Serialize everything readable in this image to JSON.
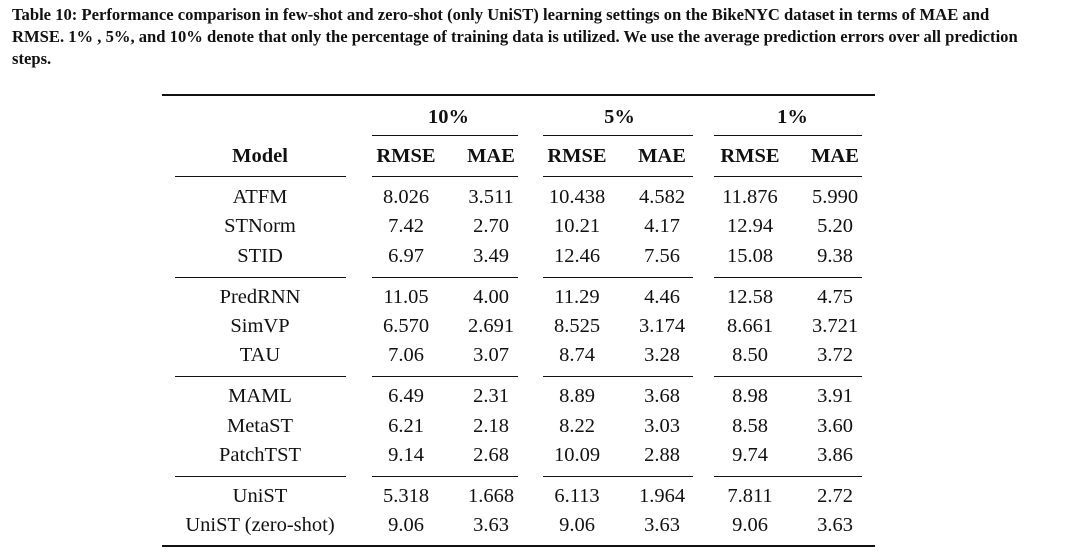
{
  "caption": "Table 10: Performance comparison in few-shot and zero-shot (only UniST) learning settings on the BikeNYC dataset in terms of MAE and RMSE. 1% , 5%, and 10% denote that only the percentage of training data is utilized. We use the average prediction errors over all prediction steps.",
  "table": {
    "groups": [
      "10%",
      "5%",
      "1%"
    ],
    "columns": [
      "Model",
      "RMSE",
      "MAE",
      "RMSE",
      "MAE",
      "RMSE",
      "MAE"
    ],
    "sections": [
      [
        [
          "ATFM",
          "8.026",
          "3.511",
          "10.438",
          "4.582",
          "11.876",
          "5.990"
        ],
        [
          "STNorm",
          "7.42",
          "2.70",
          "10.21",
          "4.17",
          "12.94",
          "5.20"
        ],
        [
          "STID",
          "6.97",
          "3.49",
          "12.46",
          "7.56",
          "15.08",
          "9.38"
        ]
      ],
      [
        [
          "PredRNN",
          "11.05",
          "4.00",
          "11.29",
          "4.46",
          "12.58",
          "4.75"
        ],
        [
          "SimVP",
          "6.570",
          "2.691",
          "8.525",
          "3.174",
          "8.661",
          "3.721"
        ],
        [
          "TAU",
          "7.06",
          "3.07",
          "8.74",
          "3.28",
          "8.50",
          "3.72"
        ]
      ],
      [
        [
          "MAML",
          "6.49",
          "2.31",
          "8.89",
          "3.68",
          "8.98",
          "3.91"
        ],
        [
          "MetaST",
          "6.21",
          "2.18",
          "8.22",
          "3.03",
          "8.58",
          "3.60"
        ],
        [
          "PatchTST",
          "9.14",
          "2.68",
          "10.09",
          "2.88",
          "9.74",
          "3.86"
        ]
      ],
      [
        [
          "UniST",
          "5.318",
          "1.668",
          "6.113",
          "1.964",
          "7.811",
          "2.72"
        ],
        [
          "UniST (zero-shot)",
          "9.06",
          "3.63",
          "9.06",
          "3.63",
          "9.06",
          "3.63"
        ]
      ]
    ]
  }
}
